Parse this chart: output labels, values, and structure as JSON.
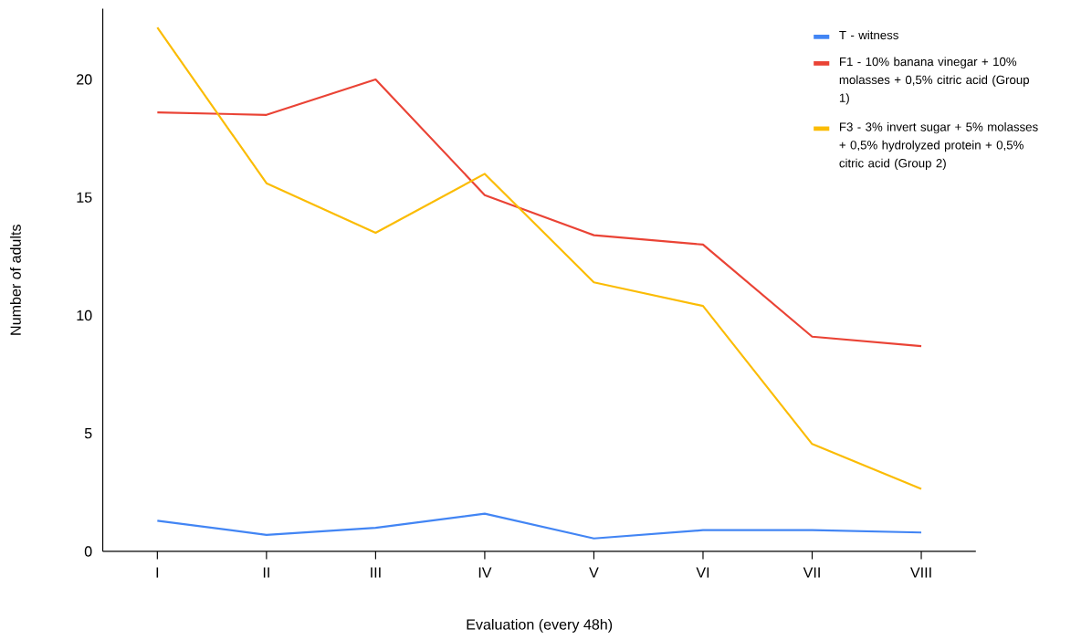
{
  "chart_data": {
    "type": "line",
    "xlabel": "Evaluation (every 48h)",
    "ylabel": "Number of adults",
    "categories": [
      "I",
      "II",
      "III",
      "IV",
      "V",
      "VI",
      "VII",
      "VIII"
    ],
    "series": [
      {
        "name": "T - witness",
        "color": "#4285f4",
        "values": [
          1.3,
          0.7,
          1.0,
          1.6,
          0.55,
          0.9,
          0.9,
          0.8
        ]
      },
      {
        "name": "F1 - 10% banana vinegar + 10% molasses + 0,5% citric acid (Group 1)",
        "color": "#ea4335",
        "values": [
          18.6,
          18.5,
          20.0,
          15.1,
          13.4,
          13.0,
          9.1,
          8.7
        ]
      },
      {
        "name": "F3 - 3% invert sugar + 5% molasses + 0,5% hydrolyzed protein + 0,5% citric acid (Group 2)",
        "color": "#fbbc04",
        "values": [
          22.2,
          15.6,
          13.5,
          16.0,
          11.4,
          10.4,
          4.55,
          2.65
        ]
      }
    ],
    "ylim": [
      0,
      23
    ],
    "yticks": [
      0,
      5,
      10,
      15,
      20
    ],
    "grid": false,
    "legend": "top right",
    "line_style": "solid"
  }
}
